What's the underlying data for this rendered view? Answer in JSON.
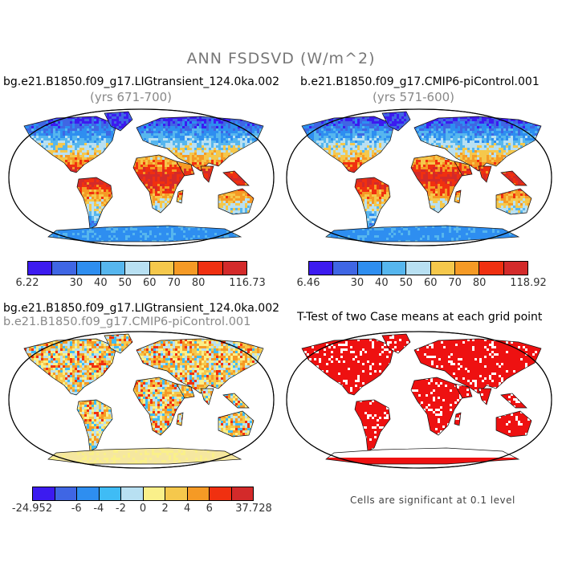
{
  "figure": {
    "title": "ANN FSDSVD (W/m^2)"
  },
  "panels": [
    {
      "title": "bg.e21.B1850.f09_g17.LIGtransient_124.0ka.002",
      "subtitle": "(yrs 671-700)",
      "colorbar": {
        "colors": [
          "#3c1bf0",
          "#3f66e4",
          "#2e8ef0",
          "#56b6ee",
          "#b8e0f2",
          "#f5c84c",
          "#f59a25",
          "#f03010",
          "#d32a2a"
        ],
        "labels": [
          "6.22",
          "30",
          "40",
          "50",
          "60",
          "70",
          "80",
          "116.73"
        ]
      }
    },
    {
      "title": "b.e21.B1850.f09_g17.CMIP6-piControl.001",
      "subtitle": "(yrs 571-600)",
      "colorbar": {
        "colors": [
          "#3c1bf0",
          "#3f66e4",
          "#2e8ef0",
          "#56b6ee",
          "#b8e0f2",
          "#f5c84c",
          "#f59a25",
          "#f03010",
          "#d32a2a"
        ],
        "labels": [
          "6.46",
          "30",
          "40",
          "50",
          "60",
          "70",
          "80",
          "118.92"
        ]
      }
    },
    {
      "title": "bg.e21.B1850.f09_g17.LIGtransient_124.0ka.002",
      "subtitle": "b.e21.B1850.f09_g17.CMIP6-piControl.001",
      "colorbar": {
        "colors": [
          "#3c1bf0",
          "#3f66e4",
          "#2e8ef0",
          "#3fbcf5",
          "#b8e0f2",
          "#faf08a",
          "#f5c84c",
          "#f59a25",
          "#f03010",
          "#d32a2a"
        ],
        "labels": [
          "-24.952",
          "-6",
          "-4",
          "-2",
          "0",
          "2",
          "4",
          "6",
          "37.728"
        ]
      }
    },
    {
      "title": "T-Test of two Case means at each grid point",
      "note": "Cells are significant at 0.1 level"
    }
  ]
}
